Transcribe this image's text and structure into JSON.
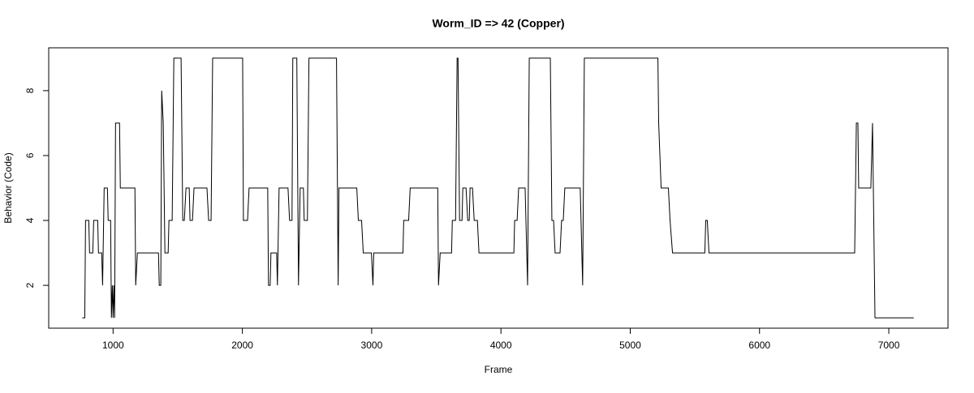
{
  "chart_data": {
    "type": "line",
    "title": "Worm_ID => 42 (Copper)",
    "x_label": "Frame",
    "y_label": "Behavior (Code)",
    "color": "#000000",
    "xlim": [
      502,
      7458
    ],
    "ylim": [
      0.68,
      9.32
    ],
    "xticks": [
      1000,
      2000,
      3000,
      4000,
      5000,
      6000,
      7000
    ],
    "yticks": [
      2,
      4,
      6,
      8
    ],
    "x": [
      762,
      781,
      787,
      812,
      818,
      843,
      850,
      881,
      887,
      912,
      919,
      931,
      956,
      962,
      981,
      987,
      994,
      1000,
      1006,
      1012,
      1019,
      1050,
      1056,
      1169,
      1175,
      1188,
      1351,
      1357,
      1369,
      1376,
      1388,
      1401,
      1426,
      1432,
      1457,
      1470,
      1526,
      1539,
      1551,
      1564,
      1589,
      1595,
      1614,
      1626,
      1726,
      1739,
      1758,
      1770,
      2002,
      2008,
      2040,
      2052,
      2196,
      2202,
      2215,
      2221,
      2265,
      2271,
      2284,
      2353,
      2365,
      2384,
      2390,
      2421,
      2434,
      2447,
      2472,
      2478,
      2503,
      2515,
      2728,
      2741,
      2747,
      2885,
      2897,
      2922,
      2935,
      2998,
      3010,
      3016,
      3242,
      3248,
      3286,
      3298,
      3511,
      3517,
      3530,
      3618,
      3624,
      3649,
      3661,
      3668,
      3680,
      3699,
      3705,
      3730,
      3743,
      3755,
      3761,
      3780,
      3793,
      3818,
      3830,
      4100,
      4106,
      4125,
      4137,
      4187,
      4206,
      4219,
      4382,
      4394,
      4407,
      4419,
      4457,
      4469,
      4482,
      4494,
      4613,
      4632,
      4645,
      5214,
      5220,
      5239,
      5295,
      5308,
      5327,
      5577,
      5584,
      5596,
      5609,
      6736,
      6749,
      6761,
      6767,
      6861,
      6874,
      6893,
      7193
    ],
    "y": [
      1,
      1,
      4,
      4,
      3,
      3,
      4,
      4,
      3,
      3,
      2,
      5,
      5,
      4,
      4,
      1,
      2,
      1,
      2,
      1,
      7,
      7,
      5,
      5,
      2,
      3,
      3,
      2,
      2,
      8,
      7,
      3,
      3,
      4,
      4,
      9,
      9,
      4,
      4,
      5,
      5,
      4,
      4,
      5,
      5,
      4,
      4,
      9,
      9,
      4,
      4,
      5,
      5,
      2,
      2,
      3,
      3,
      2,
      5,
      5,
      4,
      4,
      9,
      9,
      2,
      5,
      5,
      4,
      4,
      9,
      9,
      2,
      5,
      5,
      4,
      4,
      3,
      3,
      2,
      3,
      3,
      4,
      4,
      5,
      5,
      2,
      3,
      3,
      4,
      4,
      9,
      9,
      4,
      4,
      5,
      5,
      4,
      4,
      5,
      5,
      4,
      4,
      3,
      3,
      4,
      4,
      5,
      5,
      2,
      9,
      9,
      4,
      4,
      3,
      3,
      4,
      4,
      5,
      5,
      2,
      9,
      9,
      7,
      5,
      5,
      4,
      3,
      3,
      4,
      4,
      3,
      3,
      7,
      7,
      5,
      5,
      7,
      1,
      1
    ]
  }
}
